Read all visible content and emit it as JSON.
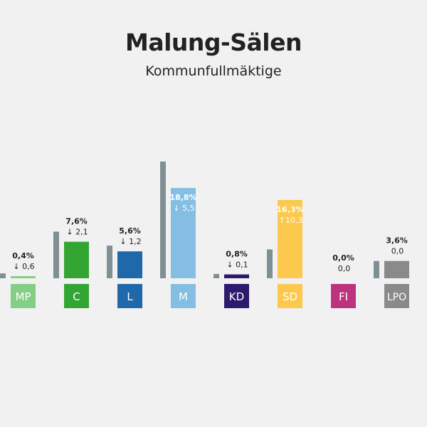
{
  "title": "Malung-Sälen",
  "subtitle": "Kommunfullmäktige",
  "chart_data": {
    "type": "bar",
    "title": "Malung-Sälen",
    "subtitle": "Kommunfullmäktige",
    "categories": [
      "MP",
      "C",
      "L",
      "M",
      "KD",
      "SD",
      "FI",
      "LPO"
    ],
    "series": [
      {
        "values": [
          1.0,
          9.7,
          6.8,
          24.3,
          0.9,
          6.0,
          0.0,
          3.6
        ]
      },
      {
        "values": [
          0.4,
          7.6,
          5.6,
          18.8,
          0.8,
          16.3,
          0.0,
          3.6
        ]
      }
    ],
    "value_labels": [
      "0,4%",
      "7,6%",
      "5,6%",
      "18,8%",
      "0,8%",
      "16,3%",
      "0,0%",
      "3,6%"
    ],
    "change_labels": [
      "0,6",
      "2,1",
      "1,2",
      "5,5",
      "0,1",
      "10,3",
      "0,0",
      "0,0"
    ],
    "change_direction": [
      "down",
      "down",
      "down",
      "down",
      "down",
      "up",
      "none",
      "none"
    ],
    "colors": [
      "#83cf85",
      "#33a532",
      "#1f69aa",
      "#84bfe3",
      "#2c1a6c",
      "#fcc94e",
      "#bd347e",
      "#8a8a8a"
    ],
    "previous_color": "#7f8f94",
    "ylim": [
      0,
      25
    ],
    "grid": false
  }
}
